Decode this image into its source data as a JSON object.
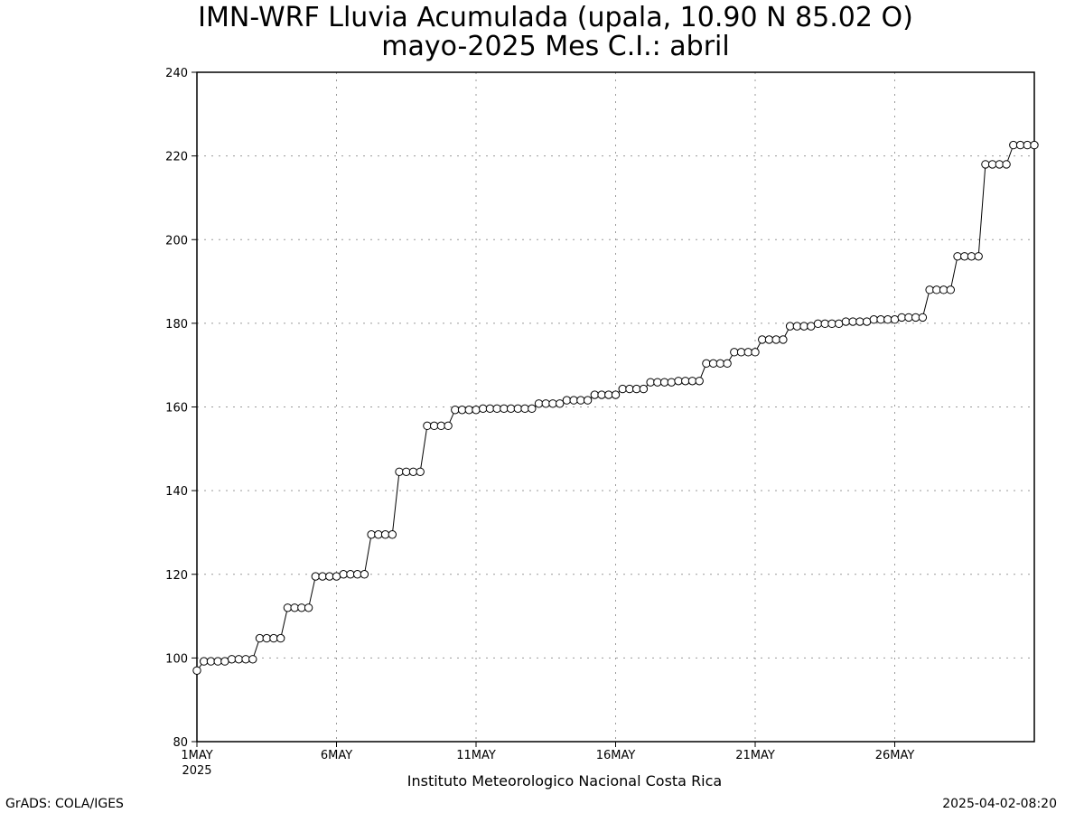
{
  "titles": {
    "line1": "IMN-WRF  Lluvia Acumulada (upala, 10.90  N 85.02  O)",
    "line2": "mayo-2025 Mes C.I.: abril"
  },
  "footer": {
    "credit": "Instituto Meteorologico Nacional Costa Rica",
    "software": "GrADS: COLA/IGES",
    "timestamp": "2025-04-02-08:20"
  },
  "chart_data": {
    "type": "line",
    "title": "IMN-WRF  Lluvia Acumulada (upala, 10.90  N 85.02  O)",
    "subtitle": "mayo-2025 Mes C.I.: abril",
    "xlabel": "",
    "ylabel": "",
    "ylim": [
      80,
      240
    ],
    "yticks": [
      80,
      100,
      120,
      140,
      160,
      180,
      200,
      220,
      240
    ],
    "xlim_days": [
      1,
      31
    ],
    "xticks": [
      {
        "day": 1,
        "label": "1MAY",
        "sub": "2025"
      },
      {
        "day": 6,
        "label": "6MAY",
        "sub": ""
      },
      {
        "day": 11,
        "label": "11MAY",
        "sub": ""
      },
      {
        "day": 16,
        "label": "16MAY",
        "sub": ""
      },
      {
        "day": 21,
        "label": "21MAY",
        "sub": ""
      },
      {
        "day": 26,
        "label": "26MAY",
        "sub": ""
      }
    ],
    "grid": true,
    "marker": "open-circle",
    "series": [
      {
        "x": [
          1.0,
          1.25,
          1.5,
          1.75,
          2.0,
          2.25,
          2.5,
          2.75,
          3.0,
          3.25,
          3.5,
          3.75,
          4.0,
          4.25,
          4.5,
          4.75,
          5.0,
          5.25,
          5.5,
          5.75,
          6.0,
          6.25,
          6.5,
          6.75,
          7.0,
          7.25,
          7.5,
          7.75,
          8.0,
          8.25,
          8.5,
          8.75,
          9.0,
          9.25,
          9.5,
          9.75,
          10.0,
          10.25,
          10.5,
          10.75,
          11.0,
          11.25,
          11.5,
          11.75,
          12.0,
          12.25,
          12.5,
          12.75,
          13.0,
          13.25,
          13.5,
          13.75,
          14.0,
          14.25,
          14.5,
          14.75,
          15.0,
          15.25,
          15.5,
          15.75,
          16.0,
          16.25,
          16.5,
          16.75,
          17.0,
          17.25,
          17.5,
          17.75,
          18.0,
          18.25,
          18.5,
          18.75,
          19.0,
          19.25,
          19.5,
          19.75,
          20.0,
          20.25,
          20.5,
          20.75,
          21.0,
          21.25,
          21.5,
          21.75,
          22.0,
          22.25,
          22.5,
          22.75,
          23.0,
          23.25,
          23.5,
          23.75,
          24.0,
          24.25,
          24.5,
          24.75,
          25.0,
          25.25,
          25.5,
          25.75,
          26.0,
          26.25,
          26.5,
          26.75,
          27.0,
          27.25,
          27.5,
          27.75,
          28.0,
          28.25,
          28.5,
          28.75,
          29.0,
          29.25,
          29.5,
          29.75,
          30.0,
          30.25,
          30.5,
          30.75,
          31.0
        ],
        "y": [
          97.0,
          99.2,
          99.2,
          99.2,
          99.2,
          99.7,
          99.7,
          99.7,
          99.7,
          104.7,
          104.7,
          104.7,
          104.7,
          112.0,
          112.0,
          112.0,
          112.0,
          119.5,
          119.5,
          119.5,
          119.5,
          120.0,
          120.0,
          120.0,
          120.0,
          129.5,
          129.5,
          129.5,
          129.5,
          144.5,
          144.5,
          144.5,
          144.5,
          155.5,
          155.5,
          155.5,
          155.5,
          159.3,
          159.3,
          159.3,
          159.3,
          159.6,
          159.6,
          159.6,
          159.6,
          159.6,
          159.6,
          159.6,
          159.6,
          160.8,
          160.8,
          160.8,
          160.8,
          161.6,
          161.6,
          161.6,
          161.6,
          162.9,
          162.9,
          162.9,
          162.9,
          164.3,
          164.3,
          164.3,
          164.3,
          165.9,
          165.9,
          165.9,
          165.9,
          166.2,
          166.2,
          166.2,
          166.2,
          170.4,
          170.4,
          170.4,
          170.4,
          173.1,
          173.1,
          173.1,
          173.1,
          176.1,
          176.1,
          176.1,
          176.1,
          179.3,
          179.3,
          179.3,
          179.3,
          179.9,
          179.9,
          179.9,
          179.9,
          180.4,
          180.4,
          180.4,
          180.4,
          180.9,
          180.9,
          180.9,
          180.9,
          181.4,
          181.4,
          181.4,
          181.4,
          188.0,
          188.0,
          188.0,
          188.0,
          196.0,
          196.0,
          196.0,
          196.0,
          218.0,
          218.0,
          218.0,
          218.0,
          222.6,
          222.6,
          222.6,
          222.6
        ]
      }
    ]
  }
}
